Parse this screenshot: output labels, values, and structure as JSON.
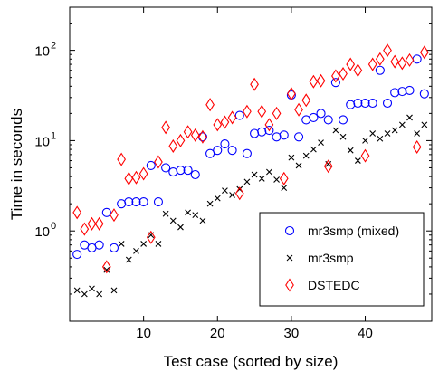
{
  "chart_data": {
    "type": "scatter",
    "title": "",
    "xlabel": "Test case (sorted by size)",
    "ylabel": "Time in seconds",
    "xlim": [
      0,
      49
    ],
    "ylim": [
      0.1,
      300
    ],
    "yscale": "log",
    "grid": false,
    "legend_position": "bottom-right",
    "x_ticks": [
      10,
      20,
      30,
      40
    ],
    "x_tick_labels": [
      "10",
      "20",
      "30",
      "40"
    ],
    "y_ticks": [
      1,
      10,
      100
    ],
    "y_tick_labels": [
      "10^0",
      "10^1",
      "10^2"
    ],
    "series": [
      {
        "name": "mr3smp (mixed)",
        "marker": "circle",
        "color": "#0000ff",
        "x": [
          1,
          2,
          3,
          4,
          5,
          6,
          7,
          8,
          9,
          10,
          11,
          12,
          13,
          14,
          15,
          16,
          17,
          18,
          19,
          20,
          21,
          22,
          23,
          24,
          25,
          26,
          27,
          28,
          29,
          30,
          31,
          32,
          33,
          34,
          35,
          36,
          37,
          38,
          39,
          40,
          41,
          42,
          43,
          44,
          45,
          46,
          47,
          48
        ],
        "y": [
          0.55,
          0.7,
          0.65,
          0.7,
          1.6,
          0.65,
          2.0,
          2.1,
          2.1,
          2.1,
          5.3,
          2.1,
          5.0,
          4.5,
          4.7,
          4.7,
          4.2,
          11.0,
          7.2,
          7.8,
          9.2,
          7.8,
          19.0,
          7.2,
          12.0,
          12.5,
          13.0,
          11.0,
          11.5,
          32.0,
          11.0,
          17.0,
          18.0,
          20.0,
          17.0,
          44.0,
          17.0,
          25.0,
          26.0,
          26.0,
          26.0,
          60.0,
          26.0,
          34.0,
          35.0,
          36.0,
          80.0,
          33.0
        ]
      },
      {
        "name": "mr3smp",
        "marker": "x",
        "color": "#000000",
        "x": [
          1,
          2,
          3,
          4,
          5,
          6,
          7,
          8,
          9,
          10,
          11,
          12,
          13,
          14,
          15,
          16,
          17,
          18,
          19,
          20,
          21,
          22,
          23,
          24,
          25,
          26,
          27,
          28,
          29,
          30,
          31,
          32,
          33,
          34,
          35,
          36,
          37,
          38,
          39,
          40,
          41,
          42,
          43,
          44,
          45,
          46,
          47,
          48
        ],
        "y": [
          0.22,
          0.2,
          0.23,
          0.2,
          0.37,
          0.22,
          0.72,
          0.48,
          0.6,
          0.72,
          0.9,
          0.72,
          1.55,
          1.3,
          1.1,
          1.6,
          1.5,
          1.3,
          2.0,
          2.3,
          2.8,
          2.5,
          2.9,
          3.5,
          4.2,
          3.8,
          4.5,
          3.7,
          3.0,
          6.5,
          5.3,
          6.8,
          8.0,
          9.5,
          5.5,
          13.0,
          11.0,
          7.8,
          6.0,
          10.0,
          12.0,
          10.5,
          12.0,
          13.0,
          15.0,
          18.0,
          12.0,
          15.0
        ]
      },
      {
        "name": "DSTEDC",
        "marker": "diamond",
        "color": "#ff0000",
        "x": [
          1,
          2,
          3,
          4,
          5,
          6,
          7,
          8,
          9,
          10,
          11,
          12,
          13,
          14,
          15,
          16,
          17,
          18,
          19,
          20,
          21,
          22,
          23,
          24,
          25,
          26,
          27,
          28,
          29,
          30,
          31,
          32,
          33,
          34,
          35,
          36,
          37,
          38,
          39,
          40,
          41,
          42,
          43,
          44,
          45,
          46,
          47,
          48
        ],
        "y": [
          1.6,
          1.05,
          1.2,
          1.2,
          0.4,
          1.5,
          6.2,
          3.8,
          3.9,
          4.3,
          0.85,
          5.8,
          14.0,
          8.7,
          10.0,
          12.5,
          11.5,
          11.0,
          25.0,
          15.0,
          16.0,
          18.0,
          2.6,
          21.0,
          42.0,
          21.0,
          15.0,
          20.0,
          3.8,
          33.0,
          22.0,
          28.0,
          45.0,
          46.0,
          5.2,
          52.0,
          55.0,
          70.0,
          60.0,
          6.8,
          70.0,
          80.0,
          100.0,
          75.0,
          72.0,
          78.0,
          8.5,
          95.0
        ]
      }
    ]
  }
}
